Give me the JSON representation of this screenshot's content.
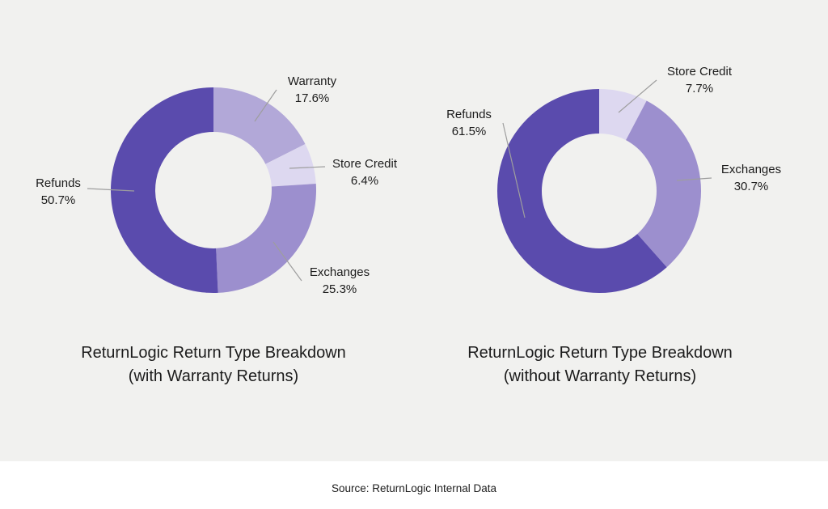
{
  "colors": {
    "background": "#F1F1EF",
    "footer_background": "#FFFFFF",
    "text": "#1C1C1C",
    "leader_line": "#9E9E9E",
    "refunds": "#5A4BAD",
    "exchanges": "#9C8FCE",
    "warranty": "#B2A8D8",
    "store_credit": "#DDD8F0"
  },
  "source_note": "Source: ReturnLogic Internal Data",
  "chart_data": [
    {
      "type": "pie",
      "subtype": "donut",
      "title": "ReturnLogic Return Type Breakdown",
      "subtitle": "(with Warranty Returns)",
      "start_angle_deg": 0,
      "direction": "clockwise",
      "legend_position": "outside-labels-with-leader-lines",
      "segments": [
        {
          "label": "Warranty",
          "value": 17.6,
          "pct_text": "17.6%",
          "color": "#B2A8D8"
        },
        {
          "label": "Store Credit",
          "value": 6.4,
          "pct_text": "6.4%",
          "color": "#DDD8F0"
        },
        {
          "label": "Exchanges",
          "value": 25.3,
          "pct_text": "25.3%",
          "color": "#9C8FCE"
        },
        {
          "label": "Refunds",
          "value": 50.7,
          "pct_text": "50.7%",
          "color": "#5A4BAD"
        }
      ]
    },
    {
      "type": "pie",
      "subtype": "donut",
      "title": "ReturnLogic Return Type Breakdown",
      "subtitle": "(without Warranty Returns)",
      "start_angle_deg": 0,
      "direction": "clockwise",
      "legend_position": "outside-labels-with-leader-lines",
      "segments": [
        {
          "label": "Store Credit",
          "value": 7.7,
          "pct_text": "7.7%",
          "color": "#DDD8F0"
        },
        {
          "label": "Exchanges",
          "value": 30.7,
          "pct_text": "30.7%",
          "color": "#9C8FCE"
        },
        {
          "label": "Refunds",
          "value": 61.5,
          "pct_text": "61.5%",
          "color": "#5A4BAD"
        }
      ]
    }
  ]
}
